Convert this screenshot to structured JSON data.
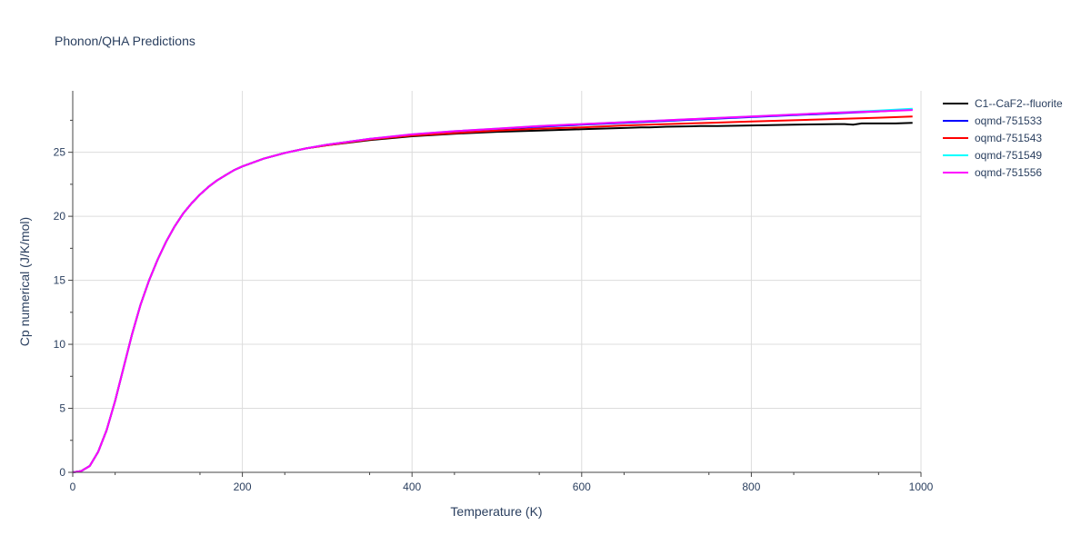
{
  "chart_data": {
    "type": "line",
    "title": "Phonon/QHA Predictions",
    "xlabel": "Temperature (K)",
    "ylabel": "Cp numerical (J/K/mol)",
    "xlim": [
      0,
      1000
    ],
    "ylim": [
      0,
      29.8
    ],
    "xticks": [
      0,
      200,
      400,
      600,
      800,
      1000
    ],
    "yticks": [
      0,
      5,
      10,
      15,
      20,
      25
    ],
    "grid": true,
    "legend_position": "top-right",
    "series": [
      {
        "name": "C1--CaF2--fluorite",
        "color": "#000000",
        "x": [
          0,
          10,
          20,
          30,
          40,
          50,
          60,
          70,
          80,
          90,
          100,
          110,
          120,
          130,
          140,
          150,
          160,
          170,
          180,
          190,
          200,
          225,
          250,
          275,
          300,
          350,
          400,
          450,
          500,
          550,
          600,
          650,
          670,
          680,
          700,
          740,
          760,
          800,
          850,
          900,
          910,
          920,
          930,
          940,
          950,
          970,
          990
        ],
        "y": [
          0,
          0.1,
          0.5,
          1.6,
          3.3,
          5.6,
          8.2,
          10.8,
          13.1,
          15.0,
          16.6,
          18.0,
          19.2,
          20.2,
          21.0,
          21.7,
          22.3,
          22.8,
          23.2,
          23.6,
          23.9,
          24.5,
          24.95,
          25.3,
          25.55,
          25.95,
          26.25,
          26.45,
          26.6,
          26.7,
          26.8,
          26.9,
          26.95,
          26.95,
          27.0,
          27.05,
          27.05,
          27.1,
          27.15,
          27.2,
          27.2,
          27.15,
          27.25,
          27.25,
          27.25,
          27.25,
          27.3
        ]
      },
      {
        "name": "oqmd-751533",
        "color": "#0000ff",
        "x": [
          0,
          10,
          20,
          30,
          40,
          50,
          60,
          70,
          80,
          90,
          100,
          110,
          120,
          130,
          140,
          150,
          160,
          170,
          180,
          190,
          200,
          225,
          250,
          275,
          300,
          350,
          400,
          450,
          500,
          550,
          600,
          650,
          700,
          750,
          800,
          850,
          900,
          950,
          990
        ],
        "y": [
          0,
          0.1,
          0.5,
          1.6,
          3.3,
          5.6,
          8.2,
          10.8,
          13.1,
          15.0,
          16.6,
          18.0,
          19.2,
          20.2,
          21.0,
          21.7,
          22.3,
          22.8,
          23.2,
          23.6,
          23.9,
          24.5,
          24.95,
          25.3,
          25.6,
          26.05,
          26.35,
          26.6,
          26.8,
          27.0,
          27.15,
          27.3,
          27.45,
          27.6,
          27.75,
          27.9,
          28.05,
          28.2,
          28.35
        ]
      },
      {
        "name": "oqmd-751543",
        "color": "#ff0000",
        "x": [
          0,
          10,
          20,
          30,
          40,
          50,
          60,
          70,
          80,
          90,
          100,
          110,
          120,
          130,
          140,
          150,
          160,
          170,
          180,
          190,
          200,
          225,
          250,
          275,
          300,
          350,
          400,
          450,
          500,
          550,
          600,
          650,
          700,
          750,
          800,
          850,
          900,
          950,
          990
        ],
        "y": [
          0,
          0.1,
          0.5,
          1.6,
          3.3,
          5.6,
          8.2,
          10.8,
          13.1,
          15.0,
          16.6,
          18.0,
          19.2,
          20.2,
          21.0,
          21.7,
          22.3,
          22.8,
          23.2,
          23.6,
          23.9,
          24.5,
          24.95,
          25.3,
          25.55,
          26.0,
          26.3,
          26.5,
          26.7,
          26.85,
          26.95,
          27.1,
          27.2,
          27.3,
          27.4,
          27.5,
          27.6,
          27.7,
          27.8
        ]
      },
      {
        "name": "oqmd-751549",
        "color": "#00ffff",
        "x": [
          0,
          10,
          20,
          30,
          40,
          50,
          60,
          70,
          80,
          90,
          100,
          110,
          120,
          130,
          140,
          150,
          160,
          170,
          180,
          190,
          200,
          225,
          250,
          275,
          300,
          350,
          400,
          450,
          500,
          550,
          600,
          650,
          700,
          750,
          800,
          850,
          900,
          950,
          990
        ],
        "y": [
          0,
          0.1,
          0.5,
          1.6,
          3.3,
          5.6,
          8.2,
          10.8,
          13.1,
          15.0,
          16.6,
          18.0,
          19.2,
          20.2,
          21.0,
          21.7,
          22.3,
          22.8,
          23.2,
          23.6,
          23.9,
          24.5,
          24.95,
          25.3,
          25.6,
          26.05,
          26.4,
          26.65,
          26.85,
          27.05,
          27.2,
          27.35,
          27.5,
          27.65,
          27.8,
          27.95,
          28.1,
          28.25,
          28.4
        ]
      },
      {
        "name": "oqmd-751556",
        "color": "#ff00ff",
        "x": [
          0,
          10,
          20,
          30,
          40,
          50,
          60,
          70,
          80,
          90,
          100,
          110,
          120,
          130,
          140,
          150,
          160,
          170,
          180,
          190,
          200,
          225,
          250,
          275,
          300,
          350,
          400,
          450,
          500,
          550,
          600,
          650,
          700,
          750,
          800,
          850,
          900,
          950,
          990
        ],
        "y": [
          0,
          0.1,
          0.5,
          1.6,
          3.3,
          5.6,
          8.2,
          10.8,
          13.1,
          15.0,
          16.6,
          18.0,
          19.2,
          20.2,
          21.0,
          21.7,
          22.3,
          22.8,
          23.2,
          23.6,
          23.9,
          24.5,
          24.95,
          25.3,
          25.6,
          26.05,
          26.4,
          26.65,
          26.85,
          27.05,
          27.2,
          27.35,
          27.5,
          27.65,
          27.8,
          27.95,
          28.1,
          28.2,
          28.3
        ]
      }
    ]
  }
}
